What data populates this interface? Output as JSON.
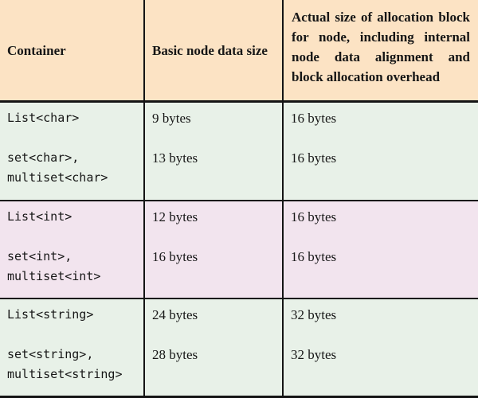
{
  "colors": {
    "header_bg": "#fce3c4",
    "green_row_bg": "#e8f1e8",
    "pink_row_bg": "#f2e4ee",
    "rule": "#141414",
    "text": "#161616"
  },
  "header": {
    "container": "Container",
    "basic": "Basic node data size",
    "actual_full": "Actual size of allocation block for node, including internal node data alignment and block allocation overhead",
    "actual_lines": [
      "Actual size of allocation block",
      "for node, including internal",
      "node data alignment and",
      "block allocation overhead"
    ]
  },
  "sections": [
    {
      "tone": "green",
      "rows": [
        {
          "container": "List<char>",
          "basic": "9 bytes",
          "actual": "16 bytes"
        },
        {
          "container": "set<char>,\nmultiset<char>",
          "basic": "13 bytes",
          "actual": "16 bytes"
        }
      ]
    },
    {
      "tone": "pink",
      "rows": [
        {
          "container": "List<int>",
          "basic": "12 bytes",
          "actual": "16 bytes"
        },
        {
          "container": "set<int>,\nmultiset<int>",
          "basic": "16 bytes",
          "actual": "16 bytes"
        }
      ]
    },
    {
      "tone": "green",
      "rows": [
        {
          "container": "List<string>",
          "basic": "24 bytes",
          "actual": "32 bytes"
        },
        {
          "container": "set<string>,\nmultiset<string>",
          "basic": "28 bytes",
          "actual": "32 bytes"
        }
      ]
    }
  ]
}
